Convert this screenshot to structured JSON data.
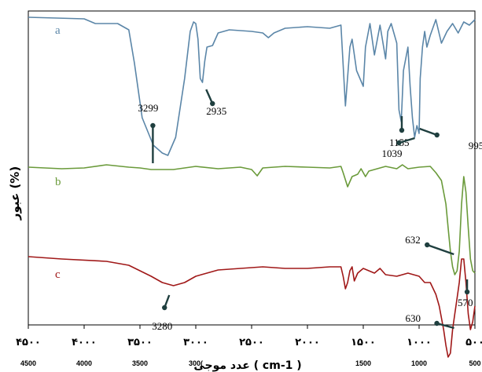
{
  "chart_data": {
    "type": "line",
    "ylabel": "عبور (%)",
    "xlabel": "عدد موجی ( cm-1 )",
    "xlim": [
      4500,
      500
    ],
    "x_ticks_persian": [
      "۴۵۰۰",
      "۴۰۰۰",
      "۳۵۰۰",
      "۳۰۰۰",
      "۲۵۰۰",
      "۲۰۰۰",
      "۱۵۰۰",
      "۱۰۰۰",
      "۵۰۰"
    ],
    "x_ticks_latin": [
      "4500",
      "4000",
      "3500",
      "300(",
      "1500",
      "1000",
      "500"
    ],
    "series": [
      {
        "name": "a",
        "color": "#5b86a8",
        "points": [
          [
            4500,
            22
          ],
          [
            4000,
            24
          ],
          [
            3900,
            30
          ],
          [
            3700,
            30
          ],
          [
            3600,
            38
          ],
          [
            3550,
            80
          ],
          [
            3480,
            150
          ],
          [
            3380,
            185
          ],
          [
            3300,
            195
          ],
          [
            3250,
            198
          ],
          [
            3180,
            175
          ],
          [
            3100,
            100
          ],
          [
            3050,
            40
          ],
          [
            3020,
            28
          ],
          [
            3000,
            30
          ],
          [
            2980,
            50
          ],
          [
            2960,
            100
          ],
          [
            2940,
            105
          ],
          [
            2920,
            78
          ],
          [
            2900,
            60
          ],
          [
            2850,
            58
          ],
          [
            2800,
            42
          ],
          [
            2700,
            38
          ],
          [
            2500,
            40
          ],
          [
            2400,
            42
          ],
          [
            2350,
            48
          ],
          [
            2300,
            42
          ],
          [
            2200,
            36
          ],
          [
            2000,
            34
          ],
          [
            1900,
            35
          ],
          [
            1800,
            36
          ],
          [
            1700,
            32
          ],
          [
            1660,
            135
          ],
          [
            1620,
            60
          ],
          [
            1600,
            50
          ],
          [
            1560,
            90
          ],
          [
            1500,
            110
          ],
          [
            1480,
            60
          ],
          [
            1440,
            30
          ],
          [
            1400,
            70
          ],
          [
            1380,
            55
          ],
          [
            1350,
            32
          ],
          [
            1300,
            75
          ],
          [
            1280,
            40
          ],
          [
            1250,
            30
          ],
          [
            1200,
            55
          ],
          [
            1180,
            140
          ],
          [
            1160,
            155
          ],
          [
            1140,
            90
          ],
          [
            1100,
            60
          ],
          [
            1080,
            110
          ],
          [
            1060,
            150
          ],
          [
            1040,
            175
          ],
          [
            1020,
            160
          ],
          [
            1000,
            170
          ],
          [
            990,
            100
          ],
          [
            970,
            60
          ],
          [
            950,
            40
          ],
          [
            930,
            60
          ],
          [
            900,
            45
          ],
          [
            850,
            25
          ],
          [
            800,
            55
          ],
          [
            750,
            40
          ],
          [
            700,
            30
          ],
          [
            650,
            42
          ],
          [
            600,
            28
          ],
          [
            550,
            32
          ],
          [
            500,
            25
          ]
        ]
      },
      {
        "name": "b",
        "color": "#6a9a3a",
        "points": [
          [
            4500,
            213
          ],
          [
            4200,
            215
          ],
          [
            4000,
            214
          ],
          [
            3800,
            210
          ],
          [
            3600,
            213
          ],
          [
            3500,
            214
          ],
          [
            3400,
            216
          ],
          [
            3200,
            216
          ],
          [
            3000,
            212
          ],
          [
            2800,
            215
          ],
          [
            2600,
            213
          ],
          [
            2500,
            216
          ],
          [
            2450,
            224
          ],
          [
            2400,
            214
          ],
          [
            2200,
            212
          ],
          [
            2000,
            213
          ],
          [
            1800,
            214
          ],
          [
            1700,
            212
          ],
          [
            1680,
            220
          ],
          [
            1640,
            238
          ],
          [
            1600,
            225
          ],
          [
            1550,
            222
          ],
          [
            1520,
            215
          ],
          [
            1500,
            220
          ],
          [
            1480,
            225
          ],
          [
            1450,
            218
          ],
          [
            1400,
            216
          ],
          [
            1300,
            212
          ],
          [
            1200,
            215
          ],
          [
            1150,
            210
          ],
          [
            1100,
            215
          ],
          [
            1000,
            213
          ],
          [
            900,
            212
          ],
          [
            850,
            220
          ],
          [
            800,
            230
          ],
          [
            760,
            260
          ],
          [
            740,
            290
          ],
          [
            720,
            320
          ],
          [
            700,
            340
          ],
          [
            680,
            350
          ],
          [
            660,
            345
          ],
          [
            640,
            320
          ],
          [
            620,
            260
          ],
          [
            600,
            225
          ],
          [
            580,
            245
          ],
          [
            560,
            290
          ],
          [
            540,
            330
          ],
          [
            520,
            345
          ],
          [
            500,
            348
          ]
        ]
      },
      {
        "name": "c",
        "color": "#a01818",
        "points": [
          [
            4500,
            327
          ],
          [
            4200,
            330
          ],
          [
            3800,
            333
          ],
          [
            3600,
            338
          ],
          [
            3500,
            345
          ],
          [
            3400,
            352
          ],
          [
            3300,
            360
          ],
          [
            3200,
            364
          ],
          [
            3100,
            360
          ],
          [
            3000,
            352
          ],
          [
            2800,
            344
          ],
          [
            2600,
            342
          ],
          [
            2400,
            340
          ],
          [
            2200,
            342
          ],
          [
            2000,
            342
          ],
          [
            1800,
            340
          ],
          [
            1700,
            340
          ],
          [
            1680,
            352
          ],
          [
            1660,
            368
          ],
          [
            1640,
            360
          ],
          [
            1620,
            345
          ],
          [
            1600,
            340
          ],
          [
            1580,
            358
          ],
          [
            1550,
            348
          ],
          [
            1500,
            342
          ],
          [
            1400,
            348
          ],
          [
            1350,
            342
          ],
          [
            1300,
            350
          ],
          [
            1200,
            352
          ],
          [
            1100,
            348
          ],
          [
            1000,
            352
          ],
          [
            950,
            360
          ],
          [
            900,
            360
          ],
          [
            850,
            375
          ],
          [
            820,
            390
          ],
          [
            800,
            405
          ],
          [
            780,
            420
          ],
          [
            760,
            440
          ],
          [
            740,
            455
          ],
          [
            720,
            450
          ],
          [
            700,
            420
          ],
          [
            680,
            400
          ],
          [
            660,
            380
          ],
          [
            640,
            360
          ],
          [
            620,
            330
          ],
          [
            600,
            330
          ],
          [
            580,
            360
          ],
          [
            560,
            400
          ],
          [
            540,
            420
          ],
          [
            520,
            410
          ],
          [
            500,
            390
          ]
        ]
      }
    ],
    "annotations": [
      {
        "label": "3299",
        "x": 3300
      },
      {
        "label": "2935",
        "x": 2935
      },
      {
        "label": "1155",
        "x": 1155
      },
      {
        "label": "1039",
        "x": 1039
      },
      {
        "label": "995",
        "x": 995
      },
      {
        "label": "632",
        "x": 632
      },
      {
        "label": "570",
        "x": 570
      },
      {
        "label": "3280",
        "x": 3280
      },
      {
        "label": "630",
        "x": 630
      }
    ]
  }
}
